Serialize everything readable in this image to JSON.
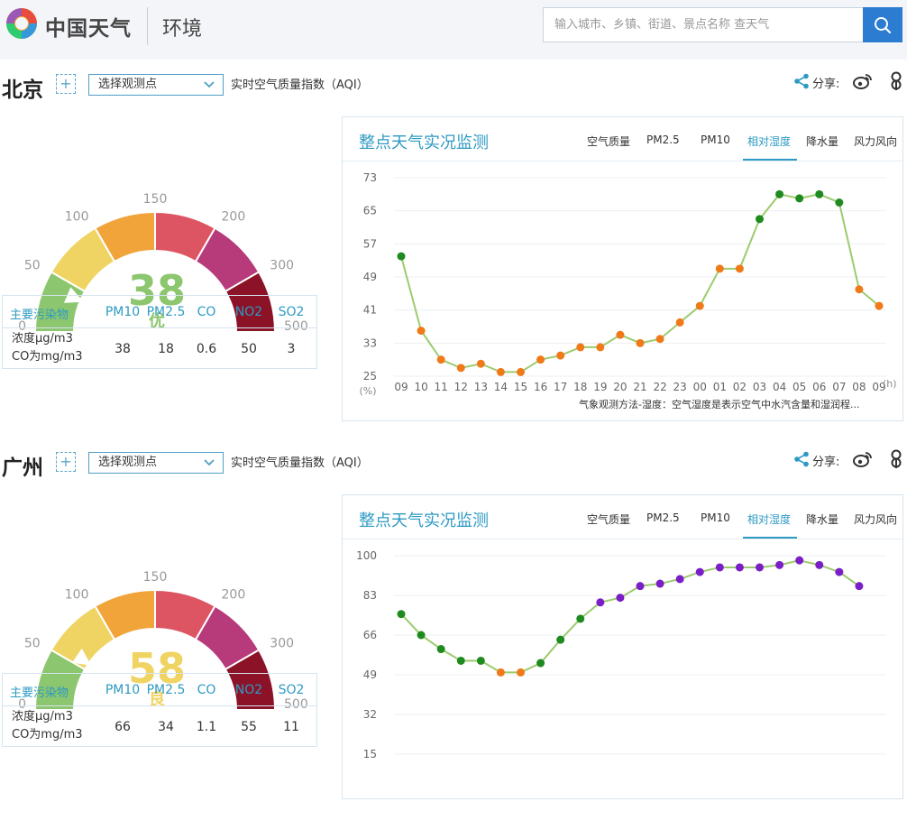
{
  "header": {
    "brand": "中国天气",
    "section": "环境",
    "search_placeholder": "输入城市、乡镇、街道、景点名称 查天气",
    "icons": [
      "logo-icon",
      "search-icon"
    ]
  },
  "cities": [
    {
      "name": "北京",
      "add_label": "+",
      "station_select": "选择观测点",
      "aqi_title": "实时空气质量指数（AQI）",
      "share_label": "分享:",
      "gauge": {
        "value": "38",
        "level": "优",
        "level_color": "#8cc66e",
        "scale_labels": [
          "0",
          "50",
          "100",
          "150",
          "200",
          "300",
          "500"
        ]
      },
      "pollutants": {
        "header_label": "主要污染物",
        "unit_lines": [
          "浓度μg/m3",
          "CO为mg/m3"
        ],
        "names": [
          "PM10",
          "PM2.5",
          "CO",
          "NO2",
          "SO2"
        ],
        "values": [
          "38",
          "18",
          "0.6",
          "50",
          "3"
        ]
      },
      "chart_panel": {
        "title": "整点天气实况监测",
        "tabs": [
          "空气质量",
          "PM2.5",
          "PM10",
          "相对湿度",
          "降水量",
          "风力风向"
        ],
        "active_tab": "相对湿度",
        "note": "气象观测方法-湿度：空气湿度是表示空气中水汽含量和湿润程..."
      }
    },
    {
      "name": "广州",
      "add_label": "+",
      "station_select": "选择观测点",
      "aqi_title": "实时空气质量指数（AQI）",
      "share_label": "分享:",
      "gauge": {
        "value": "58",
        "level": "良",
        "level_color": "#f0d463",
        "scale_labels": [
          "0",
          "50",
          "100",
          "150",
          "200",
          "300",
          "500"
        ]
      },
      "pollutants": {
        "header_label": "主要污染物",
        "unit_lines": [
          "浓度μg/m3",
          "CO为mg/m3"
        ],
        "names": [
          "PM10",
          "PM2.5",
          "CO",
          "NO2",
          "SO2"
        ],
        "values": [
          "66",
          "34",
          "1.1",
          "55",
          "11"
        ]
      },
      "chart_panel": {
        "title": "整点天气实况监测",
        "tabs": [
          "空气质量",
          "PM2.5",
          "PM10",
          "相对湿度",
          "降水量",
          "风力风向"
        ],
        "active_tab": "相对湿度",
        "note": ""
      }
    }
  ],
  "chart_data": [
    {
      "type": "line",
      "title": "",
      "ylabel": "(%)",
      "xlabel": "(h)",
      "ylim": [
        25,
        73
      ],
      "yticks": [
        "73",
        "65",
        "57",
        "49",
        "41",
        "33",
        "25"
      ],
      "categories": [
        "09",
        "10",
        "11",
        "12",
        "13",
        "14",
        "15",
        "16",
        "17",
        "18",
        "19",
        "20",
        "21",
        "22",
        "23",
        "00",
        "01",
        "02",
        "03",
        "04",
        "05",
        "06",
        "07",
        "08",
        "09"
      ],
      "values": [
        54,
        36,
        29,
        27,
        28,
        26,
        26,
        29,
        30,
        32,
        32,
        35,
        33,
        34,
        38,
        42,
        51,
        51,
        63,
        69,
        68,
        69,
        67,
        46,
        42
      ],
      "point_colors": [
        "#1f8a1f",
        "#f07a1a",
        "#f07a1a",
        "#f07a1a",
        "#f07a1a",
        "#f07a1a",
        "#f07a1a",
        "#f07a1a",
        "#f07a1a",
        "#f07a1a",
        "#f07a1a",
        "#f07a1a",
        "#f07a1a",
        "#f07a1a",
        "#f07a1a",
        "#f07a1a",
        "#f07a1a",
        "#f07a1a",
        "#1f8a1f",
        "#1f8a1f",
        "#1f8a1f",
        "#1f8a1f",
        "#1f8a1f",
        "#f07a1a",
        "#f07a1a"
      ],
      "line_color": "#9ccb6e",
      "grid": true
    },
    {
      "type": "line",
      "title": "",
      "ylim": [
        15,
        100
      ],
      "yticks": [
        "100",
        "83",
        "66",
        "49",
        "32",
        "15"
      ],
      "values": [
        75,
        66,
        60,
        55,
        55,
        50,
        50,
        54,
        64,
        73,
        80,
        82,
        87,
        88,
        90,
        93,
        95,
        95,
        95,
        96,
        98,
        96,
        93,
        87
      ],
      "point_colors": [
        "#1f8a1f",
        "#1f8a1f",
        "#1f8a1f",
        "#1f8a1f",
        "#1f8a1f",
        "#f07a1a",
        "#f07a1a",
        "#1f8a1f",
        "#1f8a1f",
        "#1f8a1f",
        "#7a1fc7",
        "#7a1fc7",
        "#7a1fc7",
        "#7a1fc7",
        "#7a1fc7",
        "#7a1fc7",
        "#7a1fc7",
        "#7a1fc7",
        "#7a1fc7",
        "#7a1fc7",
        "#7a1fc7",
        "#7a1fc7",
        "#7a1fc7",
        "#7a1fc7"
      ],
      "line_color": "#9ccb6e",
      "grid": true
    }
  ]
}
